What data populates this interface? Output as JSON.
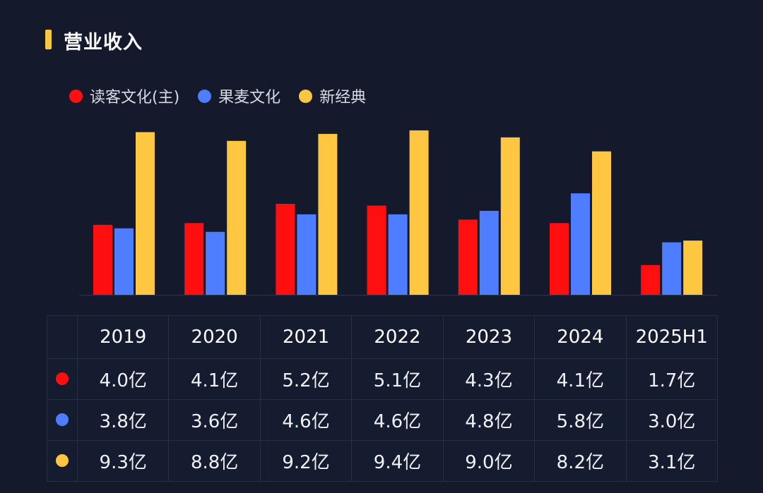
{
  "header": {
    "title": "营业收入"
  },
  "colors": {
    "accent": "#f7c744",
    "background": "#141a2c"
  },
  "chart_data": {
    "type": "bar",
    "title": "营业收入",
    "categories": [
      "2019",
      "2020",
      "2021",
      "2022",
      "2023",
      "2024",
      "2025H1"
    ],
    "series": [
      {
        "name": "读客文化(主)",
        "color": "#ff0f0f",
        "values": [
          4.0,
          4.1,
          5.2,
          5.1,
          4.3,
          4.1,
          1.7
        ],
        "labels": [
          "4.0亿",
          "4.1亿",
          "5.2亿",
          "5.1亿",
          "4.3亿",
          "4.1亿",
          "1.7亿"
        ]
      },
      {
        "name": "果麦文化",
        "color": "#4f7dff",
        "values": [
          3.8,
          3.6,
          4.6,
          4.6,
          4.8,
          5.8,
          3.0
        ],
        "labels": [
          "3.8亿",
          "3.6亿",
          "4.6亿",
          "4.6亿",
          "4.8亿",
          "5.8亿",
          "3.0亿"
        ]
      },
      {
        "name": "新经典",
        "color": "#fec641",
        "values": [
          9.3,
          8.8,
          9.2,
          9.4,
          9.0,
          8.2,
          3.1
        ],
        "labels": [
          "9.3亿",
          "8.8亿",
          "9.2亿",
          "9.4亿",
          "9.0亿",
          "8.2亿",
          "3.1亿"
        ]
      }
    ],
    "unit": "亿",
    "ylim": [
      0,
      10
    ],
    "grid": false,
    "legend_position": "top-left"
  }
}
